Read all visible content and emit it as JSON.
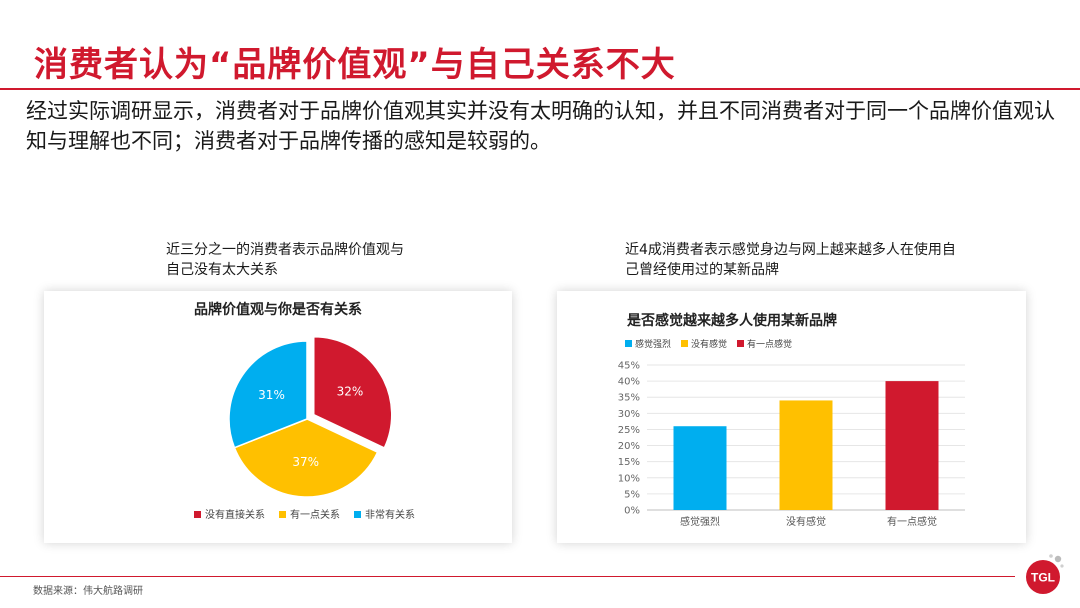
{
  "page": {
    "title": "消费者认为“品牌价值观”与自己关系不大",
    "subtitle": "经过实际调研显示，消费者对于品牌价值观其实并没有太明确的认知，并且不同消费者对于同一个品牌价值观认知与理解也不同；消费者对于品牌传播的感知是较弱的。",
    "left_caption": "近三分之一的消费者表示品牌价值观与自己没有太大关系",
    "right_caption": "近4成消费者表示感觉身边与网上越来越多人在使用自己曾经使用过的某新品牌",
    "source": "数据来源：伟大航路调研",
    "logo_text": "TGL",
    "accent_color": "#d0192e"
  },
  "chart_data": [
    {
      "type": "pie",
      "title": "品牌价值观与你是否有关系",
      "labels": [
        "没有直接关系",
        "有一点关系",
        "非常有关系"
      ],
      "values": [
        32,
        37,
        31
      ],
      "value_labels": [
        "32%",
        "37%",
        "31%"
      ],
      "colors": [
        "#d0192e",
        "#ffc000",
        "#00aeef"
      ],
      "exploded_slice": "没有直接关系",
      "legend": "bottom"
    },
    {
      "type": "bar",
      "title": "是否感觉越来越多人使用某新品牌",
      "categories": [
        "感觉强烈",
        "没有感觉",
        "有一点感觉"
      ],
      "values": [
        26,
        34,
        40
      ],
      "colors": [
        "#00aeef",
        "#ffc000",
        "#d0192e"
      ],
      "legend_labels": [
        "感觉强烈",
        "没有感觉",
        "有一点感觉"
      ],
      "ylim": [
        0,
        45
      ],
      "yticks": [
        "0%",
        "5%",
        "10%",
        "15%",
        "20%",
        "25%",
        "30%",
        "35%",
        "40%",
        "45%"
      ],
      "grid": true,
      "legend": "top-left"
    }
  ]
}
